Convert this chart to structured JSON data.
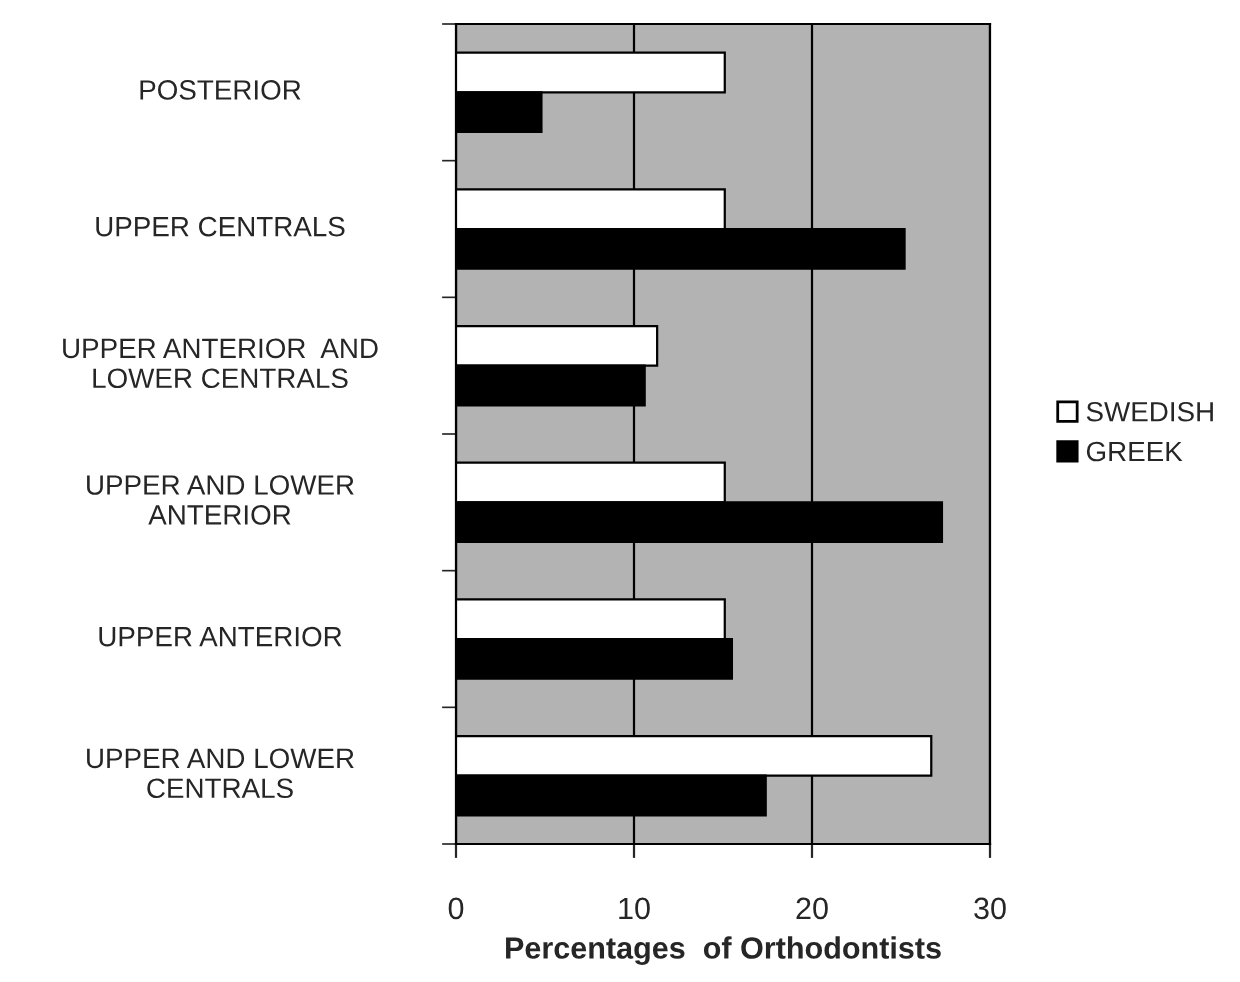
{
  "chart_data": {
    "type": "bar",
    "orientation": "horizontal",
    "xlabel": "Percentages  of Orthodontists",
    "categories": [
      "POSTERIOR",
      "UPPER CENTRALS",
      "UPPER ANTERIOR  AND\nLOWER CENTRALS",
      "UPPER AND LOWER\nANTERIOR",
      "UPPER ANTERIOR",
      "UPPER AND LOWER\nCENTRALS"
    ],
    "series": [
      {
        "name": "SWEDISH",
        "color": "#ffffff",
        "values": [
          15.1,
          15.1,
          11.3,
          15.1,
          15.1,
          26.7
        ]
      },
      {
        "name": "GREEK",
        "color": "#000000",
        "values": [
          4.8,
          25.2,
          10.6,
          27.3,
          15.5,
          17.4
        ]
      }
    ],
    "xlim": [
      0,
      30
    ],
    "xticks": [
      0,
      10,
      20,
      30
    ],
    "grid": "x",
    "legend": "right"
  }
}
